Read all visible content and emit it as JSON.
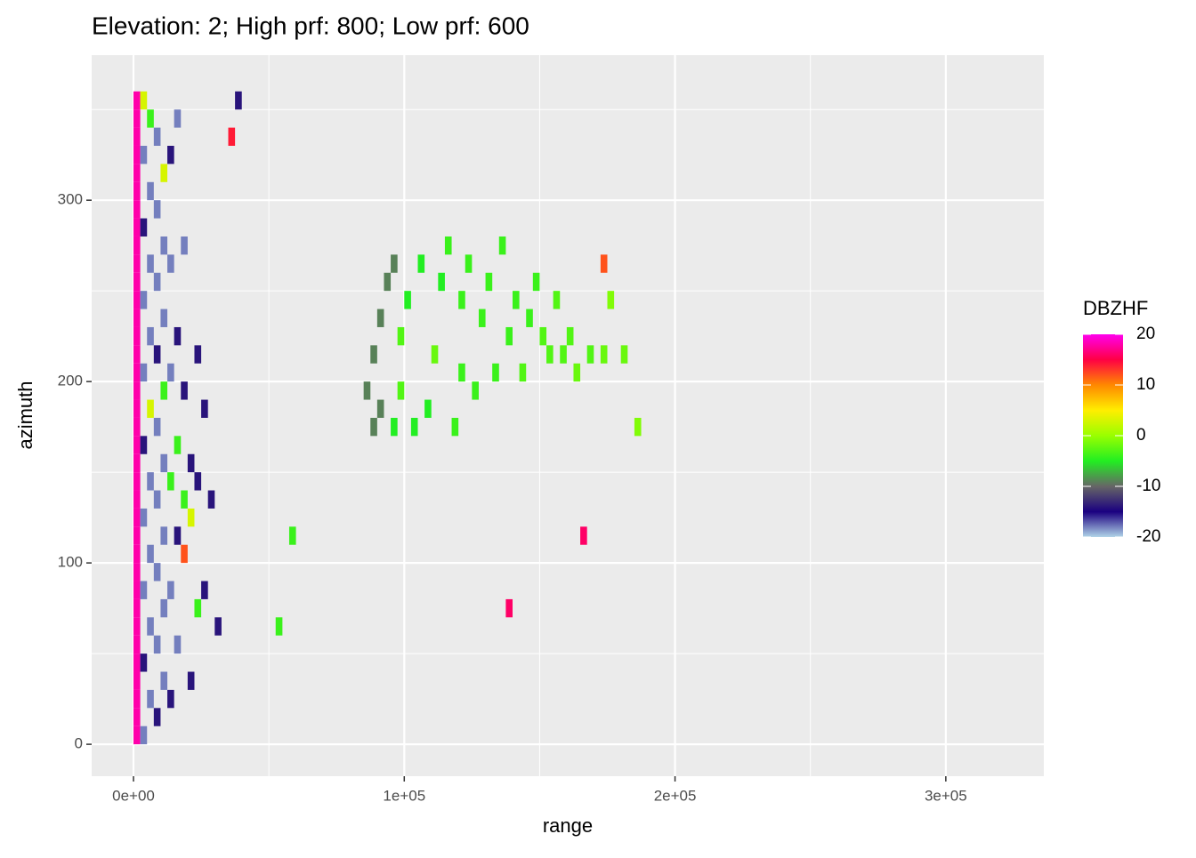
{
  "chart_data": {
    "type": "raster",
    "title": "Elevation: 2; High prf: 800; Low prf: 600",
    "xlabel": "range",
    "ylabel": "azimuth",
    "xlim": [
      -15450,
      336200
    ],
    "ylim": [
      -17.6,
      380
    ],
    "xticks": [
      {
        "value": 0,
        "label": "0e+00"
      },
      {
        "value": 100000,
        "label": "1e+05"
      },
      {
        "value": 200000,
        "label": "2e+05"
      },
      {
        "value": 300000,
        "label": "3e+05"
      }
    ],
    "xminor": [
      50000,
      150000,
      250000
    ],
    "yticks": [
      0,
      100,
      200,
      300
    ],
    "yminor": [
      50,
      150,
      250,
      350
    ],
    "grid": true,
    "legend": {
      "title": "DBZHF",
      "limits": [
        -20,
        20
      ],
      "ticks": [
        20,
        10,
        0,
        -10,
        -20
      ],
      "colors": [
        "#b0d4e8",
        "#1a0080",
        "#666666",
        "#22ee22",
        "#99ff00",
        "#ffee00",
        "#ff8800",
        "#ff0044",
        "#ff00ee"
      ]
    },
    "cells": [
      [
        1250,
        5,
        18
      ],
      [
        1250,
        15,
        18
      ],
      [
        1250,
        25,
        18
      ],
      [
        1250,
        35,
        18
      ],
      [
        1250,
        45,
        18
      ],
      [
        1250,
        55,
        18
      ],
      [
        1250,
        65,
        18
      ],
      [
        1250,
        75,
        18
      ],
      [
        1250,
        85,
        18
      ],
      [
        1250,
        95,
        18
      ],
      [
        1250,
        105,
        18
      ],
      [
        1250,
        115,
        18
      ],
      [
        1250,
        125,
        18
      ],
      [
        1250,
        135,
        18
      ],
      [
        1250,
        145,
        18
      ],
      [
        1250,
        155,
        18
      ],
      [
        1250,
        165,
        18
      ],
      [
        1250,
        175,
        18
      ],
      [
        1250,
        185,
        18
      ],
      [
        1250,
        195,
        18
      ],
      [
        1250,
        205,
        18
      ],
      [
        1250,
        215,
        18
      ],
      [
        1250,
        225,
        18
      ],
      [
        1250,
        235,
        18
      ],
      [
        1250,
        245,
        18
      ],
      [
        1250,
        255,
        18
      ],
      [
        1250,
        265,
        18
      ],
      [
        1250,
        275,
        18
      ],
      [
        1250,
        285,
        18
      ],
      [
        1250,
        295,
        18
      ],
      [
        1250,
        305,
        18
      ],
      [
        1250,
        315,
        18
      ],
      [
        1250,
        325,
        18
      ],
      [
        1250,
        335,
        18
      ],
      [
        1250,
        345,
        18
      ],
      [
        1250,
        355,
        18
      ],
      [
        3750,
        5,
        -18
      ],
      [
        3750,
        45,
        -14
      ],
      [
        3750,
        85,
        -18
      ],
      [
        3750,
        125,
        -18
      ],
      [
        3750,
        165,
        -14
      ],
      [
        3750,
        205,
        -18
      ],
      [
        3750,
        245,
        -18
      ],
      [
        3750,
        285,
        -14
      ],
      [
        3750,
        325,
        -18
      ],
      [
        3750,
        355,
        3
      ],
      [
        6250,
        25,
        -18
      ],
      [
        6250,
        65,
        -18
      ],
      [
        6250,
        105,
        -18
      ],
      [
        6250,
        145,
        -18
      ],
      [
        6250,
        185,
        3
      ],
      [
        6250,
        225,
        -18
      ],
      [
        6250,
        265,
        -18
      ],
      [
        6250,
        305,
        -18
      ],
      [
        6250,
        345,
        -4
      ],
      [
        8750,
        15,
        -14
      ],
      [
        8750,
        55,
        -18
      ],
      [
        8750,
        95,
        -18
      ],
      [
        8750,
        135,
        -18
      ],
      [
        8750,
        175,
        -18
      ],
      [
        8750,
        215,
        -14
      ],
      [
        8750,
        255,
        -18
      ],
      [
        8750,
        295,
        -18
      ],
      [
        8750,
        335,
        -18
      ],
      [
        11250,
        35,
        -18
      ],
      [
        11250,
        75,
        -18
      ],
      [
        11250,
        115,
        -18
      ],
      [
        11250,
        155,
        -18
      ],
      [
        11250,
        195,
        -4
      ],
      [
        11250,
        235,
        -18
      ],
      [
        11250,
        275,
        -18
      ],
      [
        11250,
        315,
        3
      ],
      [
        13750,
        25,
        -14
      ],
      [
        13750,
        85,
        -18
      ],
      [
        13750,
        145,
        -4
      ],
      [
        13750,
        205,
        -18
      ],
      [
        13750,
        265,
        -18
      ],
      [
        13750,
        325,
        -14
      ],
      [
        16250,
        55,
        -18
      ],
      [
        16250,
        115,
        -14
      ],
      [
        16250,
        165,
        -4
      ],
      [
        16250,
        225,
        -14
      ],
      [
        16250,
        345,
        -18
      ],
      [
        18750,
        105,
        12
      ],
      [
        18750,
        135,
        -4
      ],
      [
        18750,
        195,
        -14
      ],
      [
        18750,
        275,
        -18
      ],
      [
        21250,
        125,
        3
      ],
      [
        21250,
        155,
        -14
      ],
      [
        21250,
        35,
        -14
      ],
      [
        23750,
        75,
        -4
      ],
      [
        23750,
        145,
        -14
      ],
      [
        23750,
        215,
        -14
      ],
      [
        26250,
        85,
        -14
      ],
      [
        26250,
        185,
        -14
      ],
      [
        28750,
        135,
        -14
      ],
      [
        31250,
        65,
        -14
      ],
      [
        36250,
        335,
        14
      ],
      [
        38750,
        355,
        -14
      ],
      [
        53750,
        65,
        -4
      ],
      [
        58750,
        115,
        -4
      ],
      [
        86250,
        195,
        -9
      ],
      [
        88750,
        175,
        -9
      ],
      [
        88750,
        215,
        -9
      ],
      [
        91250,
        185,
        -9
      ],
      [
        91250,
        235,
        -9
      ],
      [
        93750,
        255,
        -9
      ],
      [
        96250,
        175,
        -5
      ],
      [
        96250,
        265,
        -9
      ],
      [
        98750,
        195,
        -3
      ],
      [
        98750,
        225,
        -3
      ],
      [
        101250,
        245,
        -5
      ],
      [
        103750,
        175,
        -5
      ],
      [
        106250,
        265,
        -5
      ],
      [
        108750,
        185,
        -5
      ],
      [
        111250,
        215,
        -2
      ],
      [
        113750,
        255,
        -5
      ],
      [
        116250,
        275,
        -4
      ],
      [
        118750,
        175,
        -4
      ],
      [
        121250,
        205,
        -4
      ],
      [
        121250,
        245,
        -4
      ],
      [
        123750,
        265,
        -4
      ],
      [
        126250,
        195,
        -4
      ],
      [
        128750,
        235,
        -4
      ],
      [
        131250,
        255,
        -4
      ],
      [
        133750,
        205,
        -4
      ],
      [
        136250,
        275,
        -4
      ],
      [
        138750,
        225,
        -4
      ],
      [
        141250,
        245,
        -4
      ],
      [
        143750,
        205,
        -3
      ],
      [
        146250,
        235,
        -4
      ],
      [
        148750,
        255,
        -4
      ],
      [
        151250,
        225,
        -3
      ],
      [
        153750,
        215,
        -3
      ],
      [
        156250,
        245,
        -3
      ],
      [
        158750,
        215,
        -3
      ],
      [
        161250,
        225,
        -3
      ],
      [
        163750,
        205,
        -2
      ],
      [
        168750,
        215,
        -3
      ],
      [
        173750,
        215,
        -2
      ],
      [
        181250,
        215,
        -2
      ],
      [
        176250,
        245,
        -1
      ],
      [
        186250,
        175,
        -1
      ],
      [
        166250,
        115,
        16
      ],
      [
        173750,
        265,
        12
      ],
      [
        138750,
        75,
        16
      ]
    ]
  }
}
